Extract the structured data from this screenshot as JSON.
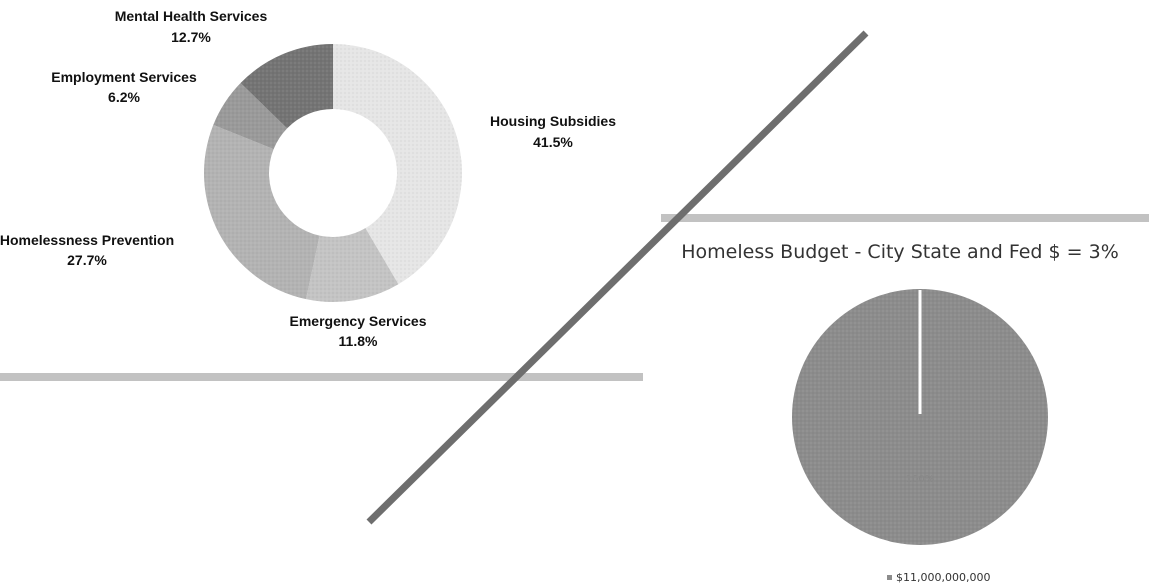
{
  "chart_data": [
    {
      "type": "pie",
      "style": "donut",
      "title": "",
      "categories": [
        "Housing Subsidies",
        "Emergency Services",
        "Homelessness Prevention",
        "Employment Services",
        "Mental Health Services"
      ],
      "values": [
        41.5,
        11.8,
        27.7,
        6.2,
        12.7
      ],
      "value_labels": [
        "41.5%",
        "11.8%",
        "27.7%",
        "6.2%",
        "12.7%"
      ],
      "colors": [
        "#e6e6e6",
        "#c4c4c4",
        "#b3b3b3",
        "#9a9a9a",
        "#747474"
      ]
    },
    {
      "type": "pie",
      "title": "Homeless Budget - City State and Fed $ = 3%",
      "categories": [
        "$11,000,000,000"
      ],
      "values": [
        100
      ],
      "value_labels": [
        "100%"
      ],
      "colors": [
        "#8c8c8c"
      ],
      "legend": "bottom"
    }
  ],
  "decor": {
    "diagonal_line_color": "#6e6e6e",
    "band_color": "#c2c2c2"
  }
}
